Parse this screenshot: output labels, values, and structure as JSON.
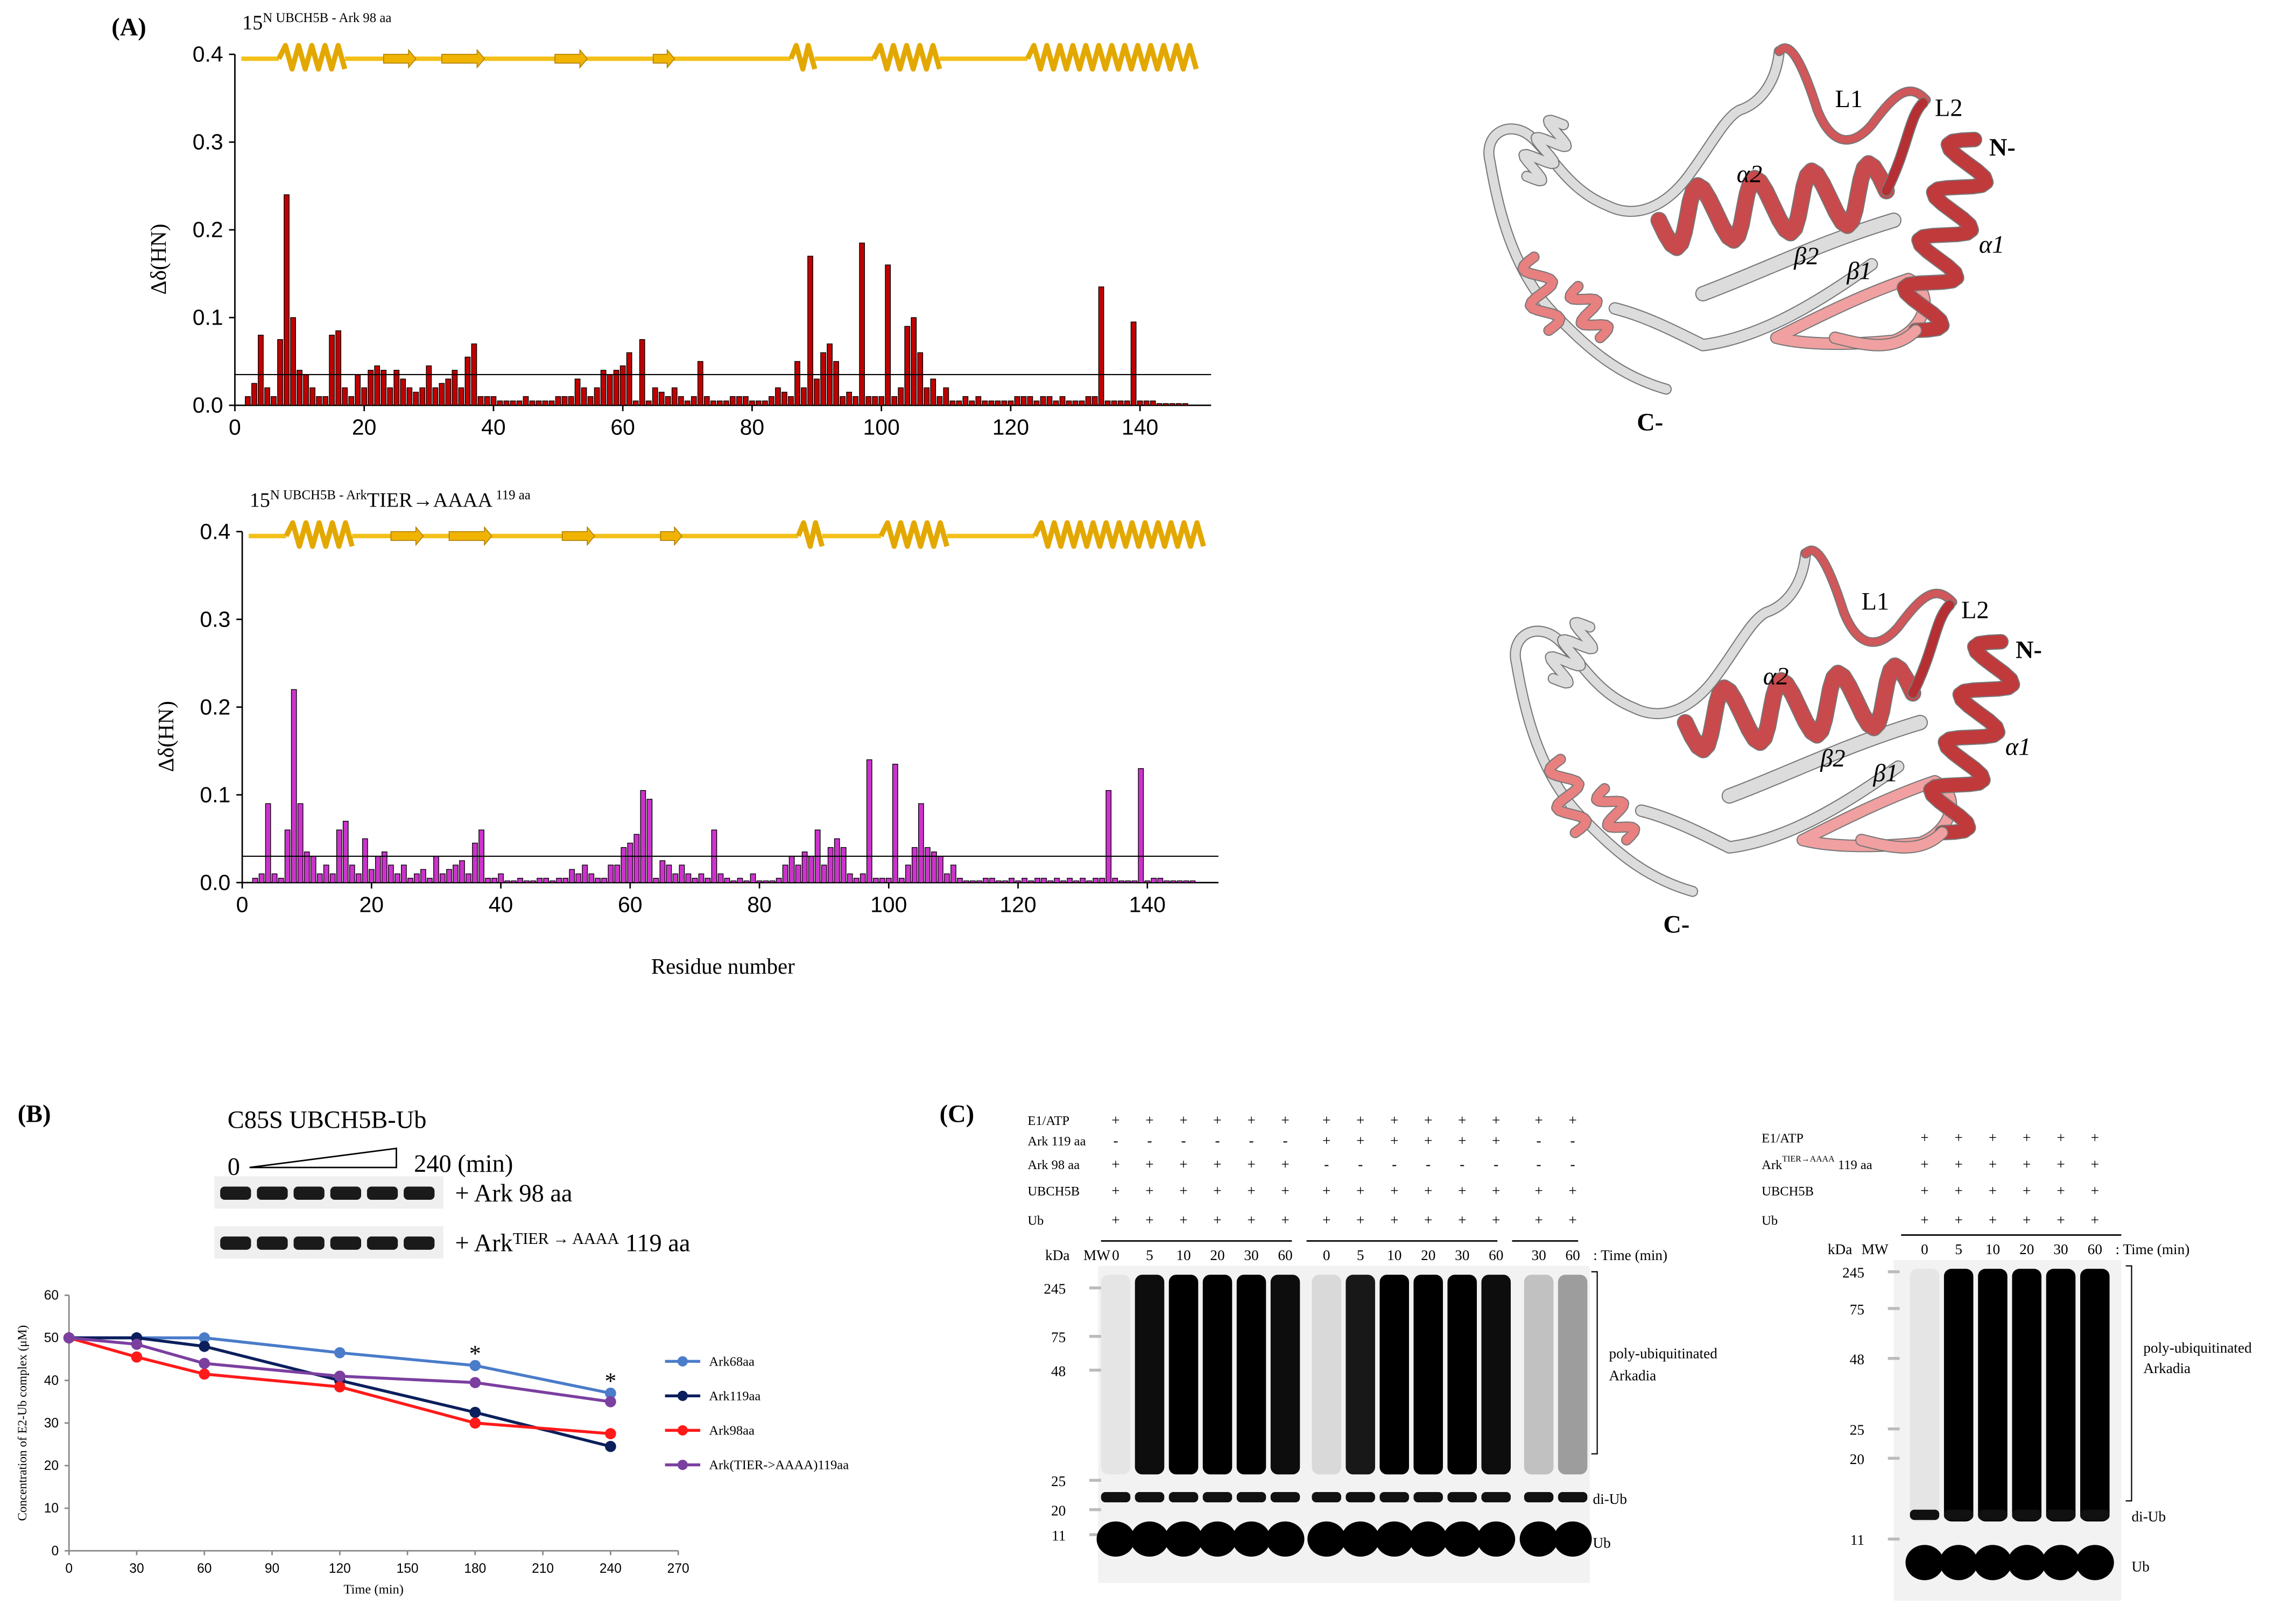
{
  "panel_labels": {
    "a": "(A)",
    "b": "(B)",
    "c": "(C)"
  },
  "chart_data": [
    {
      "type": "bar",
      "title_sup": "15",
      "title": "N UBCH5B - Ark  98 aa",
      "ylabel": "Δδ(HN)",
      "color": "#c00000",
      "threshold": 0.035,
      "xlim": [
        0,
        151
      ],
      "xticks": [
        0,
        20,
        40,
        60,
        80,
        100,
        120,
        140
      ],
      "ylim": [
        0,
        0.4
      ],
      "yticks": [
        {
          "value": 0,
          "label": "0.0"
        },
        0.1,
        0.2,
        0.3,
        0.4
      ],
      "x": [
        1,
        2,
        3,
        4,
        5,
        6,
        7,
        8,
        9,
        10,
        11,
        12,
        13,
        14,
        15,
        16,
        17,
        18,
        19,
        20,
        21,
        22,
        23,
        24,
        25,
        26,
        27,
        28,
        29,
        30,
        31,
        32,
        33,
        34,
        35,
        36,
        37,
        38,
        39,
        40,
        41,
        42,
        43,
        44,
        45,
        46,
        47,
        48,
        49,
        50,
        51,
        52,
        53,
        54,
        55,
        56,
        57,
        58,
        59,
        60,
        61,
        62,
        63,
        64,
        65,
        66,
        67,
        68,
        69,
        70,
        71,
        72,
        73,
        74,
        75,
        76,
        77,
        78,
        79,
        80,
        81,
        82,
        83,
        84,
        85,
        86,
        87,
        88,
        89,
        90,
        91,
        92,
        93,
        94,
        95,
        96,
        97,
        98,
        99,
        100,
        101,
        102,
        103,
        104,
        105,
        106,
        107,
        108,
        109,
        110,
        111,
        112,
        113,
        114,
        115,
        116,
        117,
        118,
        119,
        120,
        121,
        122,
        123,
        124,
        125,
        126,
        127,
        128,
        129,
        130,
        131,
        132,
        133,
        134,
        135,
        136,
        137,
        138,
        139,
        140,
        141,
        142,
        143,
        144,
        145,
        146,
        147
      ],
      "values": [
        0,
        0.01,
        0.025,
        0.08,
        0.02,
        0.01,
        0.075,
        0.24,
        0.1,
        0.04,
        0.035,
        0.02,
        0.01,
        0.01,
        0.08,
        0.085,
        0.02,
        0.01,
        0.035,
        0.02,
        0.04,
        0.045,
        0.04,
        0.02,
        0.04,
        0.03,
        0.02,
        0.015,
        0.02,
        0.045,
        0.02,
        0.025,
        0.03,
        0.04,
        0.02,
        0.055,
        0.07,
        0.01,
        0.01,
        0.01,
        0.005,
        0.005,
        0.005,
        0.005,
        0.01,
        0.005,
        0.005,
        0.005,
        0.005,
        0.01,
        0.01,
        0.01,
        0.03,
        0.02,
        0.01,
        0.02,
        0.04,
        0.035,
        0.04,
        0.045,
        0.06,
        0.005,
        0.075,
        0.005,
        0.02,
        0.015,
        0.01,
        0.02,
        0.01,
        0.005,
        0.01,
        0.05,
        0.01,
        0.005,
        0.005,
        0.005,
        0.01,
        0.01,
        0.01,
        0.005,
        0.005,
        0.005,
        0.01,
        0.02,
        0.015,
        0.01,
        0.05,
        0.02,
        0.17,
        0.03,
        0.06,
        0.07,
        0.05,
        0.01,
        0.015,
        0.01,
        0.185,
        0.01,
        0.01,
        0.01,
        0.16,
        0.01,
        0.02,
        0.09,
        0.1,
        0.06,
        0.02,
        0.03,
        0.01,
        0.02,
        0.005,
        0.005,
        0.01,
        0.005,
        0.01,
        0.005,
        0.005,
        0.005,
        0.005,
        0.005,
        0.01,
        0.01,
        0.01,
        0.005,
        0.01,
        0.01,
        0.005,
        0.01,
        0.005,
        0.005,
        0.005,
        0.01,
        0.01,
        0.135,
        0.005,
        0.005,
        0.005,
        0.005,
        0.095,
        0.005,
        0.005,
        0.005,
        0.002,
        0.002,
        0.002,
        0.002,
        0.002
      ]
    },
    {
      "type": "bar",
      "title_sup": "15",
      "title": "N UBCH5B - Ark",
      "title_sup2": "TIER→AAAA",
      "title_end": " 119 aa",
      "ylabel": "Δδ(HN)",
      "xlabel": "Residue number",
      "color": "#cc33cc",
      "threshold": 0.03,
      "xlim": [
        0,
        151
      ],
      "xticks": [
        0,
        20,
        40,
        60,
        80,
        100,
        120,
        140
      ],
      "ylim": [
        0,
        0.4
      ],
      "yticks": [
        {
          "value": 0,
          "label": "0.0"
        },
        0.1,
        0.2,
        0.3,
        0.4
      ],
      "x": [
        1,
        2,
        3,
        4,
        5,
        6,
        7,
        8,
        9,
        10,
        11,
        12,
        13,
        14,
        15,
        16,
        17,
        18,
        19,
        20,
        21,
        22,
        23,
        24,
        25,
        26,
        27,
        28,
        29,
        30,
        31,
        32,
        33,
        34,
        35,
        36,
        37,
        38,
        39,
        40,
        41,
        42,
        43,
        44,
        45,
        46,
        47,
        48,
        49,
        50,
        51,
        52,
        53,
        54,
        55,
        56,
        57,
        58,
        59,
        60,
        61,
        62,
        63,
        64,
        65,
        66,
        67,
        68,
        69,
        70,
        71,
        72,
        73,
        74,
        75,
        76,
        77,
        78,
        79,
        80,
        81,
        82,
        83,
        84,
        85,
        86,
        87,
        88,
        89,
        90,
        91,
        92,
        93,
        94,
        95,
        96,
        97,
        98,
        99,
        100,
        101,
        102,
        103,
        104,
        105,
        106,
        107,
        108,
        109,
        110,
        111,
        112,
        113,
        114,
        115,
        116,
        117,
        118,
        119,
        120,
        121,
        122,
        123,
        124,
        125,
        126,
        127,
        128,
        129,
        130,
        131,
        132,
        133,
        134,
        135,
        136,
        137,
        138,
        139,
        140,
        141,
        142,
        143,
        144,
        145,
        146,
        147
      ],
      "values": [
        0,
        0.005,
        0.01,
        0.09,
        0.01,
        0.005,
        0.06,
        0.22,
        0.09,
        0.035,
        0.03,
        0.01,
        0.02,
        0.01,
        0.06,
        0.07,
        0.02,
        0.01,
        0.05,
        0.015,
        0.03,
        0.035,
        0.02,
        0.01,
        0.02,
        0.005,
        0.01,
        0.015,
        0.005,
        0.03,
        0.01,
        0.015,
        0.02,
        0.025,
        0.01,
        0.045,
        0.06,
        0.005,
        0.005,
        0.01,
        0.002,
        0.002,
        0.005,
        0.002,
        0.002,
        0.005,
        0.005,
        0.002,
        0.005,
        0.005,
        0.015,
        0.01,
        0.02,
        0.01,
        0.005,
        0.005,
        0.02,
        0.02,
        0.04,
        0.045,
        0.055,
        0.105,
        0.095,
        0.005,
        0.025,
        0.02,
        0.01,
        0.02,
        0.01,
        0.005,
        0.01,
        0.005,
        0.06,
        0.01,
        0.005,
        0.002,
        0.005,
        0.002,
        0.01,
        0.002,
        0.002,
        0.002,
        0.005,
        0.02,
        0.03,
        0.02,
        0.035,
        0.03,
        0.06,
        0.02,
        0.04,
        0.05,
        0.04,
        0.01,
        0.005,
        0.01,
        0.14,
        0.005,
        0.005,
        0.005,
        0.135,
        0.005,
        0.02,
        0.04,
        0.09,
        0.04,
        0.035,
        0.03,
        0.01,
        0.02,
        0.005,
        0.002,
        0.002,
        0.002,
        0.005,
        0.005,
        0.002,
        0.002,
        0.005,
        0.002,
        0.005,
        0.002,
        0.005,
        0.005,
        0.002,
        0.005,
        0.002,
        0.005,
        0.002,
        0.005,
        0.002,
        0.005,
        0.005,
        0.105,
        0.005,
        0.002,
        0.002,
        0.002,
        0.13,
        0.002,
        0.005,
        0.005,
        0.002,
        0.002,
        0.002,
        0.002,
        0.002
      ]
    },
    {
      "type": "line",
      "xlabel": "Time (min)",
      "ylabel": "Concentration of E2-Ub complex (μM)",
      "x": [
        0,
        30,
        60,
        120,
        180,
        240
      ],
      "xlim": [
        0,
        270
      ],
      "xticks": [
        0,
        30,
        60,
        90,
        120,
        150,
        180,
        210,
        240,
        270
      ],
      "ylim": [
        0,
        60
      ],
      "yticks": [
        0,
        10,
        20,
        30,
        40,
        50,
        60
      ],
      "legend": "right",
      "series": [
        {
          "name": "Ark68aa",
          "color": "#4a7cc9",
          "values": [
            50,
            50,
            50,
            46.5,
            43.5,
            37
          ]
        },
        {
          "name": "Ark119aa",
          "color": "#0b1f5c",
          "values": [
            50,
            50,
            48,
            40,
            32.5,
            24.5
          ]
        },
        {
          "name": "Ark98aa",
          "color": "#ff1a1a",
          "values": [
            50,
            45.5,
            41.5,
            38.5,
            30,
            27.5
          ]
        },
        {
          "name": "Ark(TIER->AAAA)119aa",
          "color": "#7b3fa0",
          "values": [
            50,
            48.5,
            44,
            41,
            39.5,
            35
          ]
        }
      ],
      "annotations": [
        {
          "text": "*",
          "x": 180
        },
        {
          "text": "*",
          "x": 240
        }
      ]
    }
  ],
  "structures": [
    {
      "labels": [
        "L1",
        "L2",
        "N-",
        "α2",
        "β2",
        "β1",
        "α1",
        "C-"
      ]
    },
    {
      "labels": [
        "L1",
        "L2",
        "N-",
        "α2",
        "β2",
        "β1",
        "α1",
        "C-"
      ]
    }
  ],
  "gel_b": {
    "title": "C85S UBCH5B-Ub",
    "start": "0",
    "end": "240 (min)",
    "rows": [
      [
        "+ Ark 98 aa"
      ],
      [
        "+ Ark",
        "TIER → AAAA",
        " 119 aa"
      ]
    ]
  },
  "blots_c": [
    {
      "rows": [
        {
          "label": [
            "E1/ATP"
          ],
          "marks": [
            "+",
            "+",
            "+",
            "+",
            "+",
            "+",
            "+",
            "+",
            "+",
            "+",
            "+",
            "+",
            "+",
            "+"
          ]
        },
        {
          "label": [
            "Ark 119 aa"
          ],
          "marks": [
            "-",
            "-",
            "-",
            "-",
            "-",
            "-",
            "+",
            "+",
            "+",
            "+",
            "+",
            "+",
            "-",
            "-"
          ]
        },
        {
          "label": [
            "Ark 98 aa"
          ],
          "marks": [
            "+",
            "+",
            "+",
            "+",
            "+",
            "+",
            "-",
            "-",
            "-",
            "-",
            "-",
            "-",
            "-",
            "-"
          ]
        },
        {
          "label": [
            "UBCH5B"
          ],
          "marks": [
            "+",
            "+",
            "+",
            "+",
            "+",
            "+",
            "+",
            "+",
            "+",
            "+",
            "+",
            "+",
            "+",
            "+"
          ]
        },
        {
          "label": [
            "Ub"
          ],
          "marks": [
            "+",
            "+",
            "+",
            "+",
            "+",
            "+",
            "+",
            "+",
            "+",
            "+",
            "+",
            "+",
            "+",
            "+"
          ]
        }
      ],
      "kda": "kDa",
      "mw": "MW",
      "times": [
        0,
        5,
        10,
        20,
        30,
        60,
        0,
        5,
        10,
        20,
        30,
        60,
        30,
        60
      ],
      "time_label": ": Time (min)",
      "mw_markers": [
        245,
        75,
        48,
        25,
        20,
        11
      ],
      "annotations": [
        "poly-ubiquitinated",
        "Arkadia",
        "di-Ub",
        "Ub"
      ]
    },
    {
      "rows": [
        {
          "label": [
            "E1/ATP"
          ],
          "marks": [
            "+",
            "+",
            "+",
            "+",
            "+",
            "+"
          ]
        },
        {
          "label": [
            "Ark",
            "TIER→AAAA",
            " 119 aa"
          ],
          "marks": [
            "+",
            "+",
            "+",
            "+",
            "+",
            "+"
          ]
        },
        {
          "label": [
            "UBCH5B"
          ],
          "marks": [
            "+",
            "+",
            "+",
            "+",
            "+",
            "+"
          ]
        },
        {
          "label": [
            "Ub"
          ],
          "marks": [
            "+",
            "+",
            "+",
            "+",
            "+",
            "+"
          ]
        }
      ],
      "kda": "kDa",
      "mw": "MW",
      "times": [
        0,
        5,
        10,
        20,
        30,
        60
      ],
      "time_label": ": Time (min)",
      "mw_markers": [
        245,
        75,
        48,
        25,
        20,
        11
      ],
      "annotations": [
        "poly-ubiquitinated",
        "Arkadia",
        "di-Ub",
        "Ub"
      ]
    }
  ]
}
